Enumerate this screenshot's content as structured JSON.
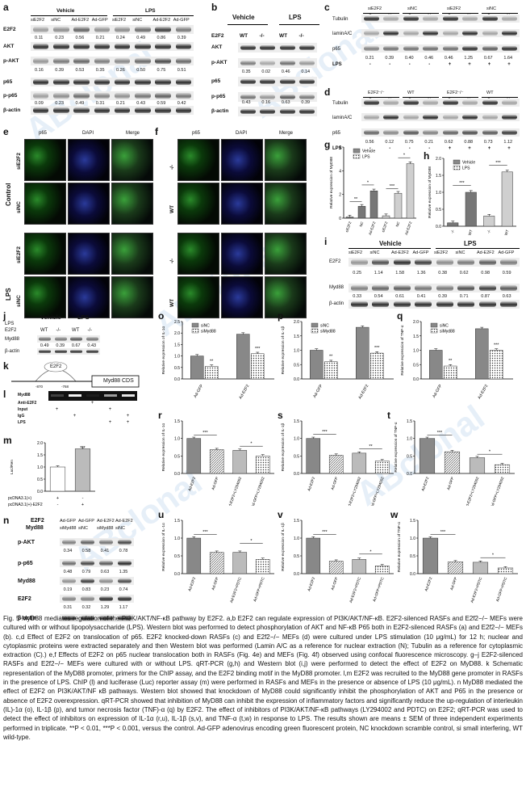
{
  "watermark": "ABclonal",
  "panels": {
    "a": "a",
    "b": "b",
    "c": "c",
    "d": "d",
    "e": "e",
    "f": "f",
    "g": "g",
    "h": "h",
    "i": "i",
    "j": "j",
    "k": "k",
    "l": "l",
    "m": "m",
    "n": "n",
    "o": "o",
    "p": "p",
    "q": "q",
    "r": "r",
    "s": "s",
    "t": "t",
    "u": "u",
    "v": "v",
    "w": "w"
  },
  "a": {
    "groups": [
      "Vehicle",
      "LPS"
    ],
    "lanes": [
      "siE2F2",
      "siNC",
      "Ad-E2F2",
      "Ad-GFP",
      "siE2F2",
      "siNC",
      "Ad-E2F2",
      "Ad-GFP"
    ],
    "rows": [
      "E2F2",
      "AKT",
      "p-AKT",
      "p65",
      "p-p65",
      "β-actin"
    ],
    "q_e2f2": [
      "0.11",
      "0.23",
      "0.56",
      "0.21",
      "0.24",
      "0.49",
      "0.86",
      "0.39"
    ],
    "q_pakt": [
      "0.16",
      "0.39",
      "0.53",
      "0.35",
      "0.26",
      "0.50",
      "0.75",
      "0.51"
    ],
    "q_pp65": [
      "0.09",
      "0.23",
      "0.49",
      "0.31",
      "0.21",
      "0.43",
      "0.59",
      "0.42"
    ]
  },
  "b": {
    "groups": [
      "Vehicle",
      "LPS"
    ],
    "rowlabel": "E2F2",
    "lanes": [
      "WT",
      "-/-",
      "WT",
      "-/-"
    ],
    "rows": [
      "AKT",
      "p-AKT",
      "p65",
      "p-p65",
      "β-actin"
    ],
    "q_pakt": [
      "0.35",
      "0.02",
      "0.46",
      "0.14"
    ],
    "q_pp65": [
      "0.43",
      "0.16",
      "0.63",
      "0.39"
    ]
  },
  "c": {
    "top": [
      "siE2F2",
      "siNC",
      "siE2F2",
      "siNC"
    ],
    "cn": [
      "C",
      "N",
      "C",
      "N",
      "C",
      "N",
      "C",
      "N"
    ],
    "rows": [
      "Tubulin",
      "laminA/C",
      "p65"
    ],
    "lpsrow": "LPS",
    "lps": [
      "-",
      "-",
      "-",
      "-",
      "+",
      "+",
      "+",
      "+"
    ],
    "q": [
      "0.21",
      "0.39",
      "0.40",
      "0.46",
      "0.46",
      "1.25",
      "0.67",
      "1.64"
    ]
  },
  "d": {
    "top": [
      "E2F2⁻/⁻",
      "WT",
      "E2F2⁻/⁻",
      "WT"
    ],
    "cn": [
      "C",
      "N",
      "C",
      "N",
      "C",
      "N",
      "C",
      "N"
    ],
    "rows": [
      "Tubulin",
      "laminA/C",
      "p65"
    ],
    "lpsrow": "LPS",
    "lps": [
      "-",
      "-",
      "-",
      "-",
      "+",
      "+",
      "+",
      "+"
    ],
    "q": [
      "0.56",
      "0.12",
      "0.75",
      "0.21",
      "0.62",
      "0.88",
      "0.73",
      "1.12"
    ]
  },
  "e": {
    "cols": [
      "p65",
      "DAPI",
      "Merge"
    ],
    "rows": [
      "siE2F2",
      "siNC",
      "siE2F2",
      "siNC"
    ],
    "groups": [
      "Control",
      "LPS"
    ]
  },
  "f": {
    "cols": [
      "p65",
      "DAPI",
      "Merge"
    ],
    "rows": [
      "-/-",
      "WT",
      "-/-",
      "WT"
    ]
  },
  "i": {
    "groups": [
      "Vehicle",
      "LPS"
    ],
    "lanes": [
      "siE2F2",
      "siNC",
      "Ad-E2F2",
      "Ad-GFP",
      "siE2F2",
      "siNC",
      "Ad-E2F2",
      "Ad-GFP"
    ],
    "rows": [
      "E2F2",
      "Myd88",
      "β-actin"
    ],
    "q_e2f2": [
      "0.25",
      "1.14",
      "1.58",
      "1.36",
      "0.38",
      "0.62",
      "0.98",
      "0.59"
    ],
    "q_myd": [
      "0.33",
      "0.54",
      "0.61",
      "0.41",
      "0.39",
      "0.71",
      "0.87",
      "0.63"
    ]
  },
  "j": {
    "lps": "LPS",
    "groups": [
      "Vehicle",
      "LPS"
    ],
    "rowlabel": "E2F2",
    "lanes": [
      "WT",
      "-/-",
      "WT",
      "-/-"
    ],
    "rows": [
      "Myd88",
      "β-actin"
    ],
    "q": [
      "0.49",
      "0.39",
      "0.67",
      "0.43"
    ]
  },
  "k": {
    "gene": "E2F2",
    "box": "Myd88 CDS",
    "p1": "-870",
    "p2": "-768"
  },
  "l": {
    "rows": [
      "Myd88",
      "Anti-E2F2",
      "Input",
      "IgG",
      "LPS"
    ],
    "signs": [
      [
        "",
        "",
        "+",
        "",
        ""
      ],
      [
        "+",
        "",
        "",
        "+",
        ""
      ],
      [
        "",
        "+",
        "",
        "",
        "+"
      ],
      [
        "",
        "",
        "",
        "+",
        "+"
      ]
    ]
  },
  "m": {
    "ylabel": "Luc/Ren",
    "xlabels": [
      "pcDNA3.1(+)",
      "pcDNA3.1(+)-E2F2"
    ],
    "signs": [
      [
        "+",
        "-"
      ],
      [
        "-",
        "+"
      ]
    ],
    "stars": "***"
  },
  "n": {
    "lanes": [
      "Ad-GFP",
      "Ad-GFP",
      "Ad-E2F2",
      "Ad-E2F2"
    ],
    "lanes2": [
      "siMyd88",
      "siNC",
      "siMyd88",
      "siNC"
    ],
    "rowlabels": [
      "E2F2",
      "Myd88"
    ],
    "rows": [
      "p-AKT",
      "p-p65",
      "Myd88",
      "E2F2",
      "β-actin"
    ],
    "q_pakt": [
      "0.34",
      "0.58",
      "0.41",
      "0.78"
    ],
    "q_pp65": [
      "0.48",
      "0.79",
      "0.63",
      "1.35"
    ],
    "q_myd": [
      "0.19",
      "0.83",
      "0.23",
      "0.74"
    ],
    "q_e2f2": [
      "0.31",
      "0.32",
      "1.29",
      "1.17"
    ]
  },
  "caption": "Fig. 5 MyD88 mediates regulation of the PI3K/AKT/NF-κB pathway by E2F2. a,b E2F2 can regulate expression of PI3K/AKT/NF-κB. E2F2-silenced RASFs and E2f2−/− MEFs were cultured with or without lipopolysaccharide (LPS). Western blot was performed to detect phosphorylation of AKT and NF-κB P65 both in E2F2-silenced RASFs (a) and E2f2−/− MEFs (b). c,d Effect of E2F2 on translocation of p65. E2F2 knocked-down RASFs (c) and E2f2−/− MEFs (d) were cultured under LPS stimulation (10 μg/mL) for 12 h; nuclear and cytoplasmic proteins were extracted separately and then Western blot was performed (Lamin A/C as a reference for nuclear extraction (N); Tubulin as a reference for cytoplasmic extraction (C).) e,f Effects of E2F2 on p65 nuclear translocation both in RASFs (Fig. 4e) and MEFs (Fig. 4f) observed using confocal fluorescence microscopy. g–j E2F2-silenced RASFs and E2f2−/− MEFs were cultured with or without LPS. qRT-PCR (g,h) and Western blot (i,j) were performed to detect the effect of E2F2 on MyD88. k Schematic representation of the MyD88 promoter, primers for the ChIP assay, and the E2F2 binding motif in the MyD88 promoter. l,m E2F2 was recruited to the MyD88 gene promoter in RASFs in the presence of LPS. ChIP (l) and luciferase (Luc) reporter assay (m) were performed in RASFs and MEFs in the presence or absence of LPS (10 μg/mL). n MyD88 mediated the effect of E2F2 on PI3K/AKT/NF κB pathways. Western blot showed that knockdown of MyD88 could significantly inhibit the phosphorylation of AKT and P65 in the presence or absence of E2F2 overexpression. qRT-PCR showed that inhibition of MyD88 can inhibit the expression of inflammatory factors and significantly reduce the up-regulation of interleukin (IL)-1α (o), IL-1β (p), and tumor necrosis factor (TNF)-α (q) by E2F2. The effect of inhibitors of PI3K/AKT/NF-κB pathways (LY294002 and PDTC) on E2F2; qRT-PCR was used to detect the effect of inhibitors on expression of IL-1α (r,u), IL-1β (s,v), and TNF-α (t,w) in response to LPS. The results shown are means ± SEM of three independent experiments performed in triplicate. **P < 0.01, ***P < 0.001, versus the control. Ad-GFP adenovirus encoding green fluorescent protein, NC knockdown scramble control, si small interfering, WT wild-type.",
  "chart_data": [
    {
      "panel": "g",
      "type": "bar",
      "ylabel": "Relative expression of MyD88",
      "legend": [
        "Vehicle",
        "LPS"
      ],
      "categories": [
        "siE2F2",
        "NC",
        "Ad-E2F2",
        "siE2F2",
        "NC",
        "Ad-E2F2"
      ],
      "values": [
        0.1,
        1.0,
        2.3,
        0.2,
        2.1,
        4.6
      ],
      "ylim": [
        0,
        6
      ],
      "yticks": [
        "0",
        "2",
        "4",
        "6"
      ],
      "stars": [
        "**",
        "*",
        "***",
        "*"
      ]
    },
    {
      "panel": "h",
      "type": "bar",
      "ylabel": "Relative expression of MyD88",
      "legend": [
        "Vehicle",
        "LPS"
      ],
      "categories": [
        "-/-",
        "WT",
        "-/-",
        "WT"
      ],
      "values": [
        0.1,
        1.0,
        0.3,
        1.6
      ],
      "ylim": [
        0,
        2
      ],
      "yticks": [
        "0.0",
        "0.5",
        "1.0",
        "1.5",
        "2.0"
      ],
      "stars": [
        "***",
        "***"
      ]
    },
    {
      "panel": "m",
      "type": "bar",
      "ylabel": "Luc/Ren",
      "values": [
        1.0,
        1.75
      ],
      "ylim": [
        0,
        2
      ],
      "yticks": [
        "0.0",
        "0.5",
        "1.0",
        "1.5",
        "2.0"
      ]
    },
    {
      "panel": "o",
      "type": "bar",
      "ylabel": "Relative expression of IL-1α",
      "legend": [
        "siNC",
        "siMyd88"
      ],
      "categories": [
        "Ad-GFP",
        "Ad-E2F2"
      ],
      "series": [
        {
          "name": "siNC",
          "values": [
            1.0,
            1.95
          ]
        },
        {
          "name": "siMyd88",
          "values": [
            0.55,
            1.1
          ]
        }
      ],
      "ylim": [
        0,
        2.5
      ],
      "yticks": [
        "0.0",
        "0.5",
        "1.0",
        "1.5",
        "2.0",
        "2.5"
      ],
      "stars": [
        "**",
        "***"
      ]
    },
    {
      "panel": "p",
      "type": "bar",
      "ylabel": "Relative expression of IL-1β",
      "legend": [
        "siNC",
        "siMyd88"
      ],
      "categories": [
        "Ad-GFP",
        "Ad-E2F2"
      ],
      "series": [
        {
          "name": "siNC",
          "values": [
            1.0,
            1.8
          ]
        },
        {
          "name": "siMyd88",
          "values": [
            0.6,
            0.9
          ]
        }
      ],
      "ylim": [
        0,
        2.0
      ],
      "yticks": [
        "0.0",
        "0.5",
        "1.0",
        "1.5",
        "2.0"
      ],
      "stars": [
        "**",
        "***"
      ]
    },
    {
      "panel": "q",
      "type": "bar",
      "ylabel": "Relative expression of TNF-α",
      "legend": [
        "siNC",
        "siMyd88"
      ],
      "categories": [
        "Ad-GFP",
        "Ad-E2F2"
      ],
      "series": [
        {
          "name": "siNC",
          "values": [
            1.0,
            1.75
          ]
        },
        {
          "name": "siMyd88",
          "values": [
            0.45,
            1.0
          ]
        }
      ],
      "ylim": [
        0,
        2.0
      ],
      "yticks": [
        "0.0",
        "0.5",
        "1.0",
        "1.5",
        "2.0"
      ],
      "stars": [
        "**",
        "***"
      ]
    },
    {
      "panel": "r",
      "type": "bar",
      "ylabel": "Relative expression of IL-1α",
      "categories": [
        "Ad-E2F2",
        "Ad-GFP",
        "Ad-E2F2+LY294002",
        "Ad-GFP+LY294002"
      ],
      "values": [
        1.0,
        0.68,
        0.66,
        0.5
      ],
      "ylim": [
        0,
        1.5
      ],
      "yticks": [
        "0.0",
        "0.5",
        "1.0",
        "1.5"
      ],
      "stars": [
        "***",
        "*"
      ]
    },
    {
      "panel": "s",
      "type": "bar",
      "ylabel": "Relative expression of IL-1β",
      "categories": [
        "Ad-E2F2",
        "Ad-GFP",
        "Ad-E2F2+LY294002",
        "Ad-GFP+LY294002"
      ],
      "values": [
        1.0,
        0.52,
        0.58,
        0.36
      ],
      "ylim": [
        0,
        1.5
      ],
      "yticks": [
        "0.0",
        "0.5",
        "1.0",
        "1.5"
      ],
      "stars": [
        "***",
        "**"
      ]
    },
    {
      "panel": "t",
      "type": "bar",
      "ylabel": "Relative expression of TNF-α",
      "categories": [
        "Ad-E2F2",
        "Ad-GFP",
        "Ad-E2F2+LY294002",
        "Ad-GFP+LY294002"
      ],
      "values": [
        1.0,
        0.62,
        0.45,
        0.25
      ],
      "ylim": [
        0,
        1.5
      ],
      "yticks": [
        "0.0",
        "0.5",
        "1.0",
        "1.5"
      ],
      "stars": [
        "***",
        "*"
      ]
    },
    {
      "panel": "u",
      "type": "bar",
      "ylabel": "Relative expression of IL-1α",
      "categories": [
        "Ad-E2F2",
        "Ad-GFP",
        "Ad-E2F2+PDTC",
        "Ad-GFP+PDTC"
      ],
      "values": [
        1.0,
        0.6,
        0.6,
        0.4
      ],
      "ylim": [
        0,
        1.5
      ],
      "yticks": [
        "0.0",
        "0.5",
        "1.0",
        "1.5"
      ],
      "stars": [
        "***",
        "*"
      ]
    },
    {
      "panel": "v",
      "type": "bar",
      "ylabel": "Relative expression of IL-1β",
      "categories": [
        "Ad-E2F2",
        "Ad-GFP",
        "Ad-E2F2+PDTC",
        "Ad-GFP+PDTC"
      ],
      "values": [
        1.0,
        0.35,
        0.4,
        0.22
      ],
      "ylim": [
        0,
        1.5
      ],
      "yticks": [
        "0.0",
        "0.5",
        "1.0",
        "1.5"
      ],
      "stars": [
        "***",
        "*"
      ]
    },
    {
      "panel": "w",
      "type": "bar",
      "ylabel": "Relative expression of TNF-α",
      "categories": [
        "Ad-E2F2",
        "Ad-GFP",
        "Ad-E2F2+PDTC",
        "Ad-GFP+PDTC"
      ],
      "values": [
        1.0,
        0.33,
        0.32,
        0.16
      ],
      "ylim": [
        0,
        1.5
      ],
      "yticks": [
        "0.0",
        "0.5",
        "1.0",
        "1.5"
      ],
      "stars": [
        "***",
        "*"
      ]
    }
  ]
}
